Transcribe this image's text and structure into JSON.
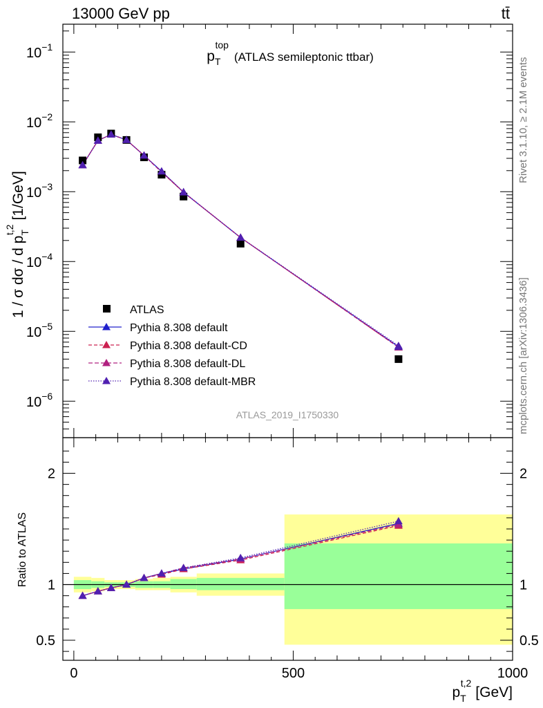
{
  "header": {
    "left": "13000 GeV pp",
    "right": "tt̄"
  },
  "side_labels": {
    "rivet": "Rivet 3.1.10, ≥ 2.1M events",
    "mcplots": "mcplots.cern.ch [arXiv:1306.3436]"
  },
  "chart_data": {
    "type": "line",
    "title_main": "p",
    "title_sub": "T",
    "title_sup": "top",
    "title_rest": "(ATLAS semileptonic ttbar)",
    "watermark": "ATLAS_2019_I1750330",
    "x_axis": {
      "label_main": "p",
      "label_sub": "T",
      "label_sup": "t,2",
      "label_unit": "[GeV]",
      "range": [
        -25,
        1000
      ],
      "ticks": [
        0,
        500,
        1000
      ],
      "tick_labels": [
        "0",
        "500",
        "1000"
      ]
    },
    "y_axis_main": {
      "scale": "log",
      "range": [
        3e-07,
        0.25
      ],
      "label_prefix": "1 / σ dσ / d p",
      "label_sub": "T",
      "label_sup": "t,2",
      "label_unit": "[1/GeV]",
      "ticks": [
        {
          "value": 1e-06,
          "base": "10",
          "exp": "−6"
        },
        {
          "value": 1e-05,
          "base": "10",
          "exp": "−5"
        },
        {
          "value": 0.0001,
          "base": "10",
          "exp": "−4"
        },
        {
          "value": 0.001,
          "base": "10",
          "exp": "−3"
        },
        {
          "value": 0.01,
          "base": "10",
          "exp": "−2"
        },
        {
          "value": 0.1,
          "base": "10",
          "exp": "−1"
        }
      ]
    },
    "y_axis_ratio": {
      "scale": "linear",
      "range": [
        0.32,
        2.32
      ],
      "label": "Ratio to ATLAS",
      "ticks": [
        0.5,
        1,
        2
      ],
      "tick_labels": [
        "0.5",
        "1",
        "2"
      ]
    },
    "bins": [
      {
        "lo": 0,
        "hi": 40
      },
      {
        "lo": 40,
        "hi": 70
      },
      {
        "lo": 70,
        "hi": 100
      },
      {
        "lo": 100,
        "hi": 140
      },
      {
        "lo": 140,
        "hi": 180
      },
      {
        "lo": 180,
        "hi": 220
      },
      {
        "lo": 220,
        "hi": 280
      },
      {
        "lo": 280,
        "hi": 480
      },
      {
        "lo": 480,
        "hi": 1000
      }
    ],
    "x": [
      20,
      55,
      85,
      120,
      160,
      200,
      250,
      380,
      740
    ],
    "data": {
      "name": "ATLAS",
      "values": [
        0.0028,
        0.006,
        0.0068,
        0.0055,
        0.0031,
        0.00175,
        0.00085,
        0.00018,
        4e-06
      ]
    },
    "ratio_band_inner": [
      {
        "lo": 0.96,
        "hi": 1.04
      },
      {
        "lo": 0.97,
        "hi": 1.03
      },
      {
        "lo": 0.98,
        "hi": 1.02
      },
      {
        "lo": 0.98,
        "hi": 1.02
      },
      {
        "lo": 0.97,
        "hi": 1.03
      },
      {
        "lo": 0.97,
        "hi": 1.03
      },
      {
        "lo": 0.96,
        "hi": 1.05
      },
      {
        "lo": 0.95,
        "hi": 1.06
      },
      {
        "lo": 0.78,
        "hi": 1.37
      }
    ],
    "ratio_band_outer": [
      {
        "lo": 0.93,
        "hi": 1.07
      },
      {
        "lo": 0.94,
        "hi": 1.06
      },
      {
        "lo": 0.96,
        "hi": 1.04
      },
      {
        "lo": 0.96,
        "hi": 1.04
      },
      {
        "lo": 0.95,
        "hi": 1.05
      },
      {
        "lo": 0.95,
        "hi": 1.06
      },
      {
        "lo": 0.93,
        "hi": 1.07
      },
      {
        "lo": 0.9,
        "hi": 1.1
      },
      {
        "lo": 0.46,
        "hi": 1.63
      }
    ],
    "series": [
      {
        "name": "Pythia 8.308 default",
        "color": "#2020cc",
        "dash": "",
        "values": [
          0.0024,
          0.0054,
          0.0066,
          0.0055,
          0.0033,
          0.00195,
          0.00098,
          0.00022,
          6e-06
        ],
        "ratio": [
          0.9,
          0.94,
          0.97,
          1.0,
          1.06,
          1.1,
          1.14,
          1.23,
          1.55
        ]
      },
      {
        "name": "Pythia 8.308 default-CD",
        "color": "#cc2050",
        "dash": "5,3",
        "values": [
          0.0024,
          0.0054,
          0.0066,
          0.0055,
          0.0033,
          0.0019,
          0.00098,
          0.00022,
          5.9e-06
        ],
        "ratio": [
          0.9,
          0.94,
          0.97,
          1.0,
          1.06,
          1.09,
          1.14,
          1.22,
          1.53
        ]
      },
      {
        "name": "Pythia 8.308 default-DL",
        "color": "#b02080",
        "dash": "6,3",
        "values": [
          0.0024,
          0.0054,
          0.0066,
          0.0055,
          0.0033,
          0.00192,
          0.00098,
          0.00022,
          5.9e-06
        ],
        "ratio": [
          0.9,
          0.94,
          0.97,
          1.0,
          1.06,
          1.1,
          1.15,
          1.23,
          1.54
        ]
      },
      {
        "name": "Pythia 8.308 default-MBR",
        "color": "#5020b0",
        "dash": "1.5,2",
        "values": [
          0.0024,
          0.0054,
          0.0066,
          0.0055,
          0.0033,
          0.00195,
          0.00099,
          0.00022,
          6.2e-06
        ],
        "ratio": [
          0.9,
          0.94,
          0.97,
          1.0,
          1.06,
          1.1,
          1.15,
          1.24,
          1.57
        ]
      }
    ]
  }
}
